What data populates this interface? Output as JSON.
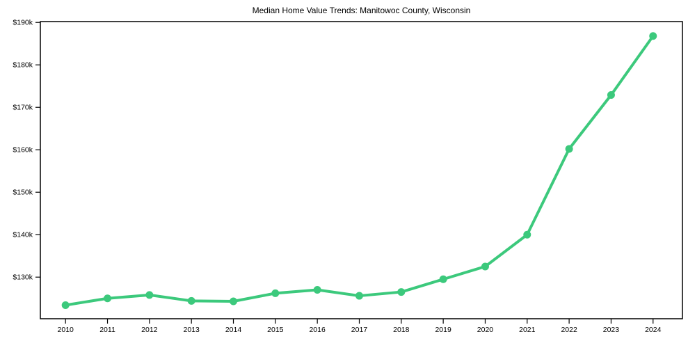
{
  "window": {
    "background_color": "#ffffff"
  },
  "chart_data": {
    "type": "line",
    "title": "Median Home Value Trends: Manitowoc County, Wisconsin",
    "xlabel": "",
    "ylabel": "",
    "x": [
      2010,
      2011,
      2012,
      2013,
      2014,
      2015,
      2016,
      2017,
      2018,
      2019,
      2020,
      2021,
      2022,
      2023,
      2024
    ],
    "series": [
      {
        "name": "median_home_value",
        "values": [
          123400,
          125000,
          125800,
          124400,
          124300,
          126200,
          127000,
          125600,
          126500,
          129500,
          132500,
          140000,
          160200,
          172900,
          186800
        ],
        "color": "#3cc97c"
      }
    ],
    "xlim": [
      2009.4,
      2024.7
    ],
    "ylim": [
      120200,
      190200
    ],
    "xticks": {
      "values": [
        2010,
        2011,
        2012,
        2013,
        2014,
        2015,
        2016,
        2017,
        2018,
        2019,
        2020,
        2021,
        2022,
        2023,
        2024
      ],
      "labels": [
        "2010",
        "2011",
        "2012",
        "2013",
        "2014",
        "2015",
        "2016",
        "2017",
        "2018",
        "2019",
        "2020",
        "2021",
        "2022",
        "2023",
        "2024"
      ]
    },
    "yticks": {
      "values": [
        130000,
        140000,
        150000,
        160000,
        170000,
        180000,
        190000
      ],
      "labels": [
        "$130k",
        "$140k",
        "$150k",
        "$160k",
        "$170k",
        "$180k",
        "$190k"
      ]
    },
    "grid": false,
    "legend_position": "none",
    "marker": "circle",
    "marker_radius": 5.5,
    "line_width": 4,
    "axis_color": "#000000",
    "text_color": "#000000"
  }
}
